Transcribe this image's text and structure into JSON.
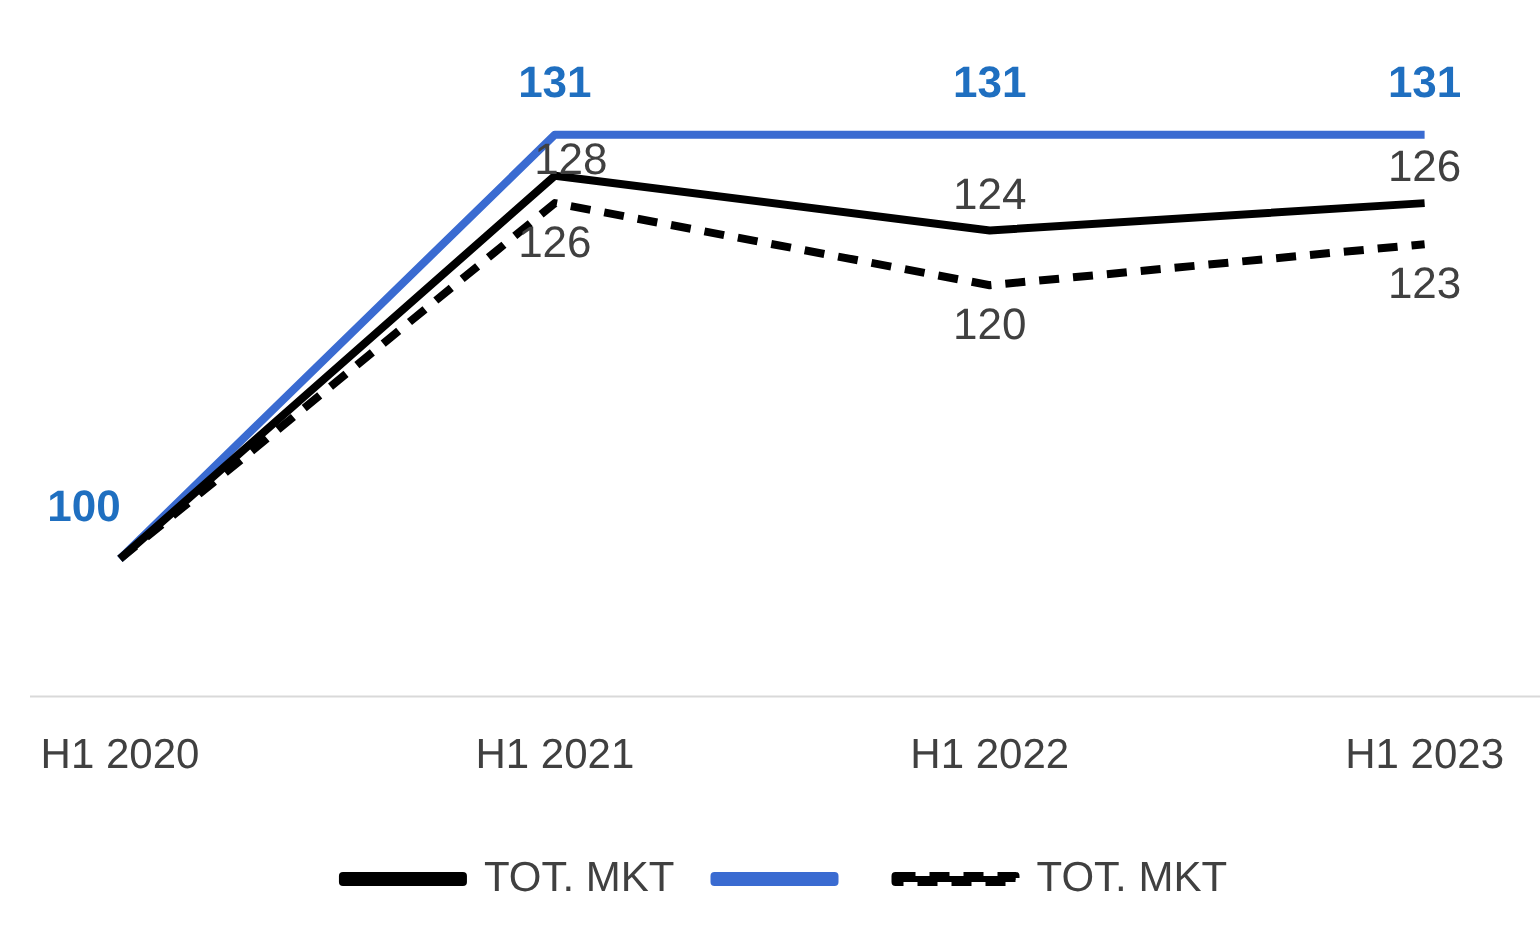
{
  "chart_data": {
    "type": "line",
    "categories": [
      "H1 2020",
      "H1 2021",
      "H1 2022",
      "H1 2023"
    ],
    "series": [
      {
        "name": "TOT. MKT",
        "color": "#000000",
        "values": [
          100,
          128,
          124,
          126
        ],
        "value_labels": [
          null,
          "128",
          "124",
          "126"
        ],
        "line_style": "solid"
      },
      {
        "color": "#3a6bd1",
        "values": [
          100,
          131,
          131,
          131
        ],
        "value_labels": [
          "100",
          "131",
          "131",
          "131"
        ],
        "line_style": "solid"
      },
      {
        "name": "TOT. MKT",
        "color": "#000000",
        "values": [
          100,
          126,
          120,
          123
        ],
        "value_labels": [
          null,
          "126",
          "120",
          "123"
        ],
        "line_style": "dashed"
      }
    ],
    "tick_labels": "x",
    "grid": false,
    "legend": "bottom",
    "marker": "none"
  }
}
